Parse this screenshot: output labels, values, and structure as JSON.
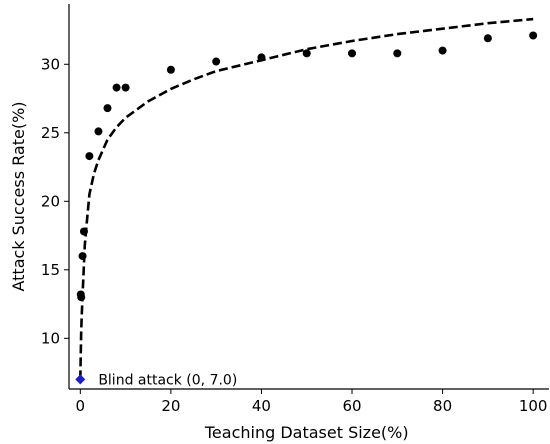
{
  "chart_data": {
    "type": "scatter",
    "xlabel": "Teaching Dataset Size(%)",
    "ylabel": "Attack Success Rate(%)",
    "xlim": [
      -2.5,
      103.5
    ],
    "ylim": [
      6.3,
      34.4
    ],
    "x_ticks": [
      0,
      20,
      40,
      60,
      80,
      100
    ],
    "y_ticks": [
      10,
      15,
      20,
      25,
      30
    ],
    "grid": false,
    "points": [
      {
        "x": 0.1,
        "y": 13.2
      },
      {
        "x": 0.2,
        "y": 13.0
      },
      {
        "x": 0.5,
        "y": 16.0
      },
      {
        "x": 0.8,
        "y": 17.8
      },
      {
        "x": 2,
        "y": 23.3
      },
      {
        "x": 4,
        "y": 25.1
      },
      {
        "x": 6,
        "y": 26.8
      },
      {
        "x": 8,
        "y": 28.3
      },
      {
        "x": 10,
        "y": 28.3
      },
      {
        "x": 20,
        "y": 29.6
      },
      {
        "x": 30,
        "y": 30.2
      },
      {
        "x": 40,
        "y": 30.5
      },
      {
        "x": 50,
        "y": 30.8
      },
      {
        "x": 60,
        "y": 30.8
      },
      {
        "x": 70,
        "y": 30.8
      },
      {
        "x": 80,
        "y": 31.0
      },
      {
        "x": 90,
        "y": 31.9
      },
      {
        "x": 100,
        "y": 32.1
      }
    ],
    "point_color": "#000000",
    "trend": {
      "style": "dashed",
      "color": "#000000",
      "points": [
        [
          0,
          7.0
        ],
        [
          0.1,
          9.0
        ],
        [
          0.2,
          10.5
        ],
        [
          0.3,
          11.6
        ],
        [
          0.5,
          13.2
        ],
        [
          0.75,
          15.0
        ],
        [
          1,
          16.8
        ],
        [
          1.5,
          18.7
        ],
        [
          2,
          20.5
        ],
        [
          3,
          22.0
        ],
        [
          4,
          23.0
        ],
        [
          6,
          24.5
        ],
        [
          8,
          25.4
        ],
        [
          10,
          26.1
        ],
        [
          15,
          27.3
        ],
        [
          20,
          28.2
        ],
        [
          25,
          28.9
        ],
        [
          30,
          29.5
        ],
        [
          35,
          29.9
        ],
        [
          40,
          30.3
        ],
        [
          45,
          30.7
        ],
        [
          50,
          31.1
        ],
        [
          60,
          31.7
        ],
        [
          70,
          32.2
        ],
        [
          80,
          32.6
        ],
        [
          90,
          33.0
        ],
        [
          100,
          33.3
        ]
      ]
    },
    "annotation": {
      "marker": "diamond",
      "color": "#1f1fbf",
      "x": 0,
      "y": 7.0,
      "text": "Blind attack (0, 7.0)"
    }
  }
}
